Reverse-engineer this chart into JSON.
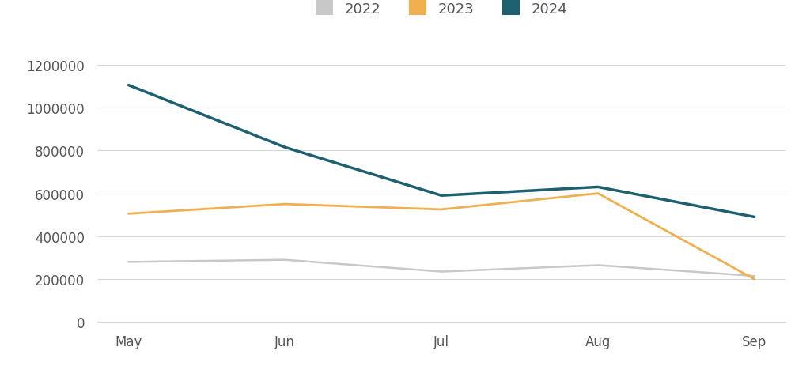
{
  "months": [
    "May",
    "Jun",
    "Jul",
    "Aug",
    "Sep"
  ],
  "series": {
    "2022": [
      280000,
      290000,
      235000,
      265000,
      215000
    ],
    "2023": [
      505000,
      550000,
      525000,
      600000,
      200000
    ],
    "2024": [
      1105000,
      815000,
      590000,
      630000,
      490000
    ]
  },
  "colors": {
    "2022": "#c8c8c8",
    "2023": "#f0b050",
    "2024": "#1d6070"
  },
  "line_widths": {
    "2022": 1.8,
    "2023": 2.0,
    "2024": 2.5
  },
  "ylim": [
    0,
    1300000
  ],
  "yticks": [
    0,
    200000,
    400000,
    600000,
    800000,
    1000000,
    1200000
  ],
  "background_color": "#ffffff",
  "grid_color": "#d8d8d8",
  "legend_labels": [
    "2022",
    "2023",
    "2024"
  ],
  "font_color": "#555555",
  "tick_fontsize": 12,
  "legend_fontsize": 13
}
